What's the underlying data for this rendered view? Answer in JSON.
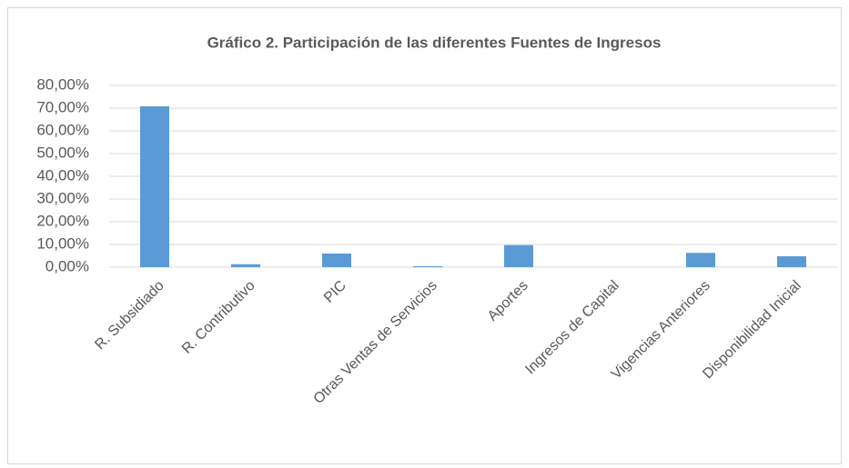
{
  "chart_data": {
    "type": "bar",
    "title": "Gráfico 2. Participación de las diferentes Fuentes de Ingresos",
    "categories": [
      "R. Subsidiado",
      "R. Contributivo",
      "PIC",
      "Otras Ventas de Servicios",
      "Aportes",
      "Ingresos de Capital",
      "Vigencias Anteriores",
      "Disponibilidad Inicial"
    ],
    "values": [
      70.8,
      1.3,
      6.0,
      0.4,
      9.7,
      0.0,
      6.3,
      4.8
    ],
    "color": "#5b9bd5",
    "ylim": [
      0,
      80
    ],
    "yticks": [
      {
        "value": 0,
        "label": "0,00%"
      },
      {
        "value": 10,
        "label": "10,00%"
      },
      {
        "value": 20,
        "label": "20,00%"
      },
      {
        "value": 30,
        "label": "30,00%"
      },
      {
        "value": 40,
        "label": "40,00%"
      },
      {
        "value": 50,
        "label": "50,00%"
      },
      {
        "value": 60,
        "label": "60,00%"
      },
      {
        "value": 70,
        "label": "70,00%"
      },
      {
        "value": 80,
        "label": "80,00%"
      }
    ],
    "grid": true
  }
}
